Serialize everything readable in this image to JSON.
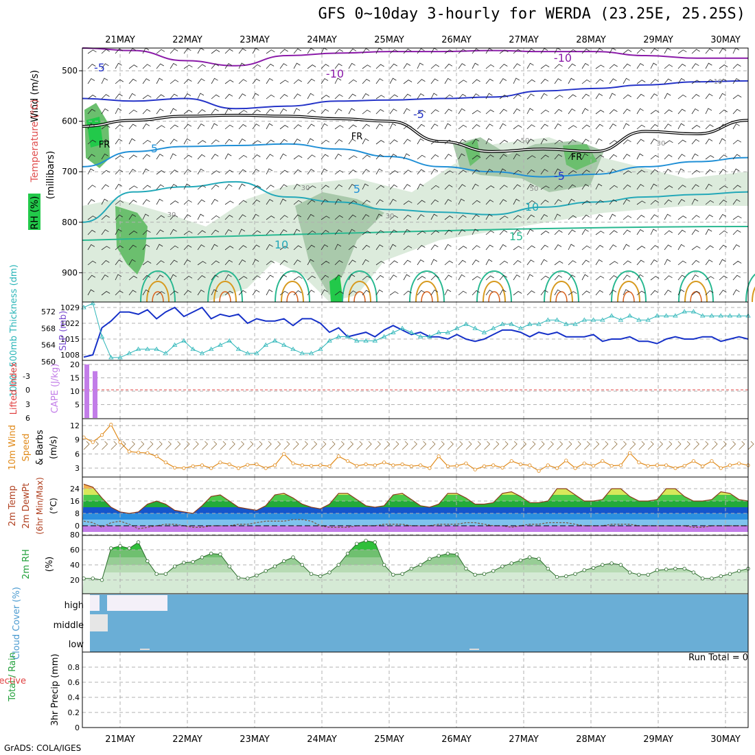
{
  "title": "GFS 0~10day 3-hourly for WERDA (23.25E, 25.25S)",
  "credit": "GrADS: COLA/IGES",
  "colors": {
    "rh_light": "#dcebdc",
    "rh_mid": "#a9c9ab",
    "rh_dark": "#6bbf6e",
    "rh_bright": "#22c94a",
    "t_minus10": "#8a1aa8",
    "t_minus5": "#2433c8",
    "t_5": "#1f8fd6",
    "t_10": "#22a8b8",
    "t_15": "#28b890",
    "t_20": "#d79a1f",
    "t_25": "#d8601a",
    "slp": "#1530c8",
    "thickness": "#2ab5b8",
    "cape": "#c27de8",
    "lifted": "#e04040",
    "wind": "#e08a1a",
    "cloud": "#6aaed6",
    "grid": "#b0b0b0"
  },
  "chart_data": [
    {
      "type": "contour",
      "x_ticks": [
        "21MAY",
        "22MAY",
        "23MAY",
        "24MAY",
        "25MAY",
        "26MAY",
        "27MAY",
        "28MAY",
        "29MAY",
        "30MAY"
      ],
      "ylabel": "(millibars)",
      "y_ticks": [
        500,
        600,
        700,
        800,
        900
      ],
      "side_labels": [
        "Wind (m/s)",
        "Temperature (°C)",
        "RH (%)"
      ],
      "rh_legend": "RH (%)",
      "contour_labels": [
        "-10",
        "-10",
        "-5",
        "-5",
        "-5",
        "5",
        "5",
        "10",
        "10",
        "15",
        "FR",
        "FR",
        "FR",
        "10",
        "30",
        "30",
        "30",
        "50",
        "50",
        "30"
      ],
      "isotherms": [
        {
          "label": "-10",
          "p": [
            455,
            460,
            480,
            490,
            470,
            465,
            462,
            462,
            460,
            462,
            462,
            470,
            475,
            475
          ]
        },
        {
          "label": "-5",
          "p": [
            555,
            560,
            555,
            575,
            570,
            560,
            558,
            555,
            552,
            540,
            535,
            528,
            522,
            520
          ]
        },
        {
          "label": "FR",
          "p": [
            610,
            598,
            590,
            588,
            590,
            595,
            600,
            640,
            660,
            655,
            660,
            620,
            625,
            598
          ]
        },
        {
          "label": "5",
          "p": [
            690,
            660,
            650,
            648,
            645,
            655,
            670,
            690,
            700,
            710,
            705,
            690,
            680,
            672
          ]
        },
        {
          "label": "10",
          "p": [
            800,
            740,
            730,
            720,
            750,
            760,
            775,
            780,
            785,
            770,
            760,
            750,
            745,
            740
          ]
        }
      ]
    },
    {
      "type": "line",
      "ylabel": "SLP (mb)",
      "ylabel2": "1000~500mb Thickness (dm)",
      "y_ticks": [
        1008,
        1015,
        1022,
        1029
      ],
      "y2_ticks": [
        560,
        564,
        568,
        572
      ],
      "series": [
        {
          "name": "SLP",
          "values": [
            1007,
            1008,
            1020,
            1023,
            1027,
            1027,
            1026,
            1028,
            1024,
            1027,
            1029,
            1025,
            1027,
            1029,
            1024,
            1026,
            1025,
            1026,
            1022,
            1024,
            1023,
            1023,
            1024,
            1021,
            1024,
            1024,
            1022,
            1018,
            1020,
            1016,
            1017,
            1018,
            1016,
            1019,
            1021,
            1019,
            1017,
            1018,
            1016,
            1016,
            1015,
            1017,
            1015,
            1014,
            1015,
            1017,
            1019,
            1019,
            1018,
            1016,
            1018,
            1017,
            1018,
            1016,
            1016,
            1016,
            1017,
            1014,
            1015,
            1015,
            1016,
            1014,
            1014,
            1013,
            1015,
            1016,
            1015,
            1015,
            1016,
            1016,
            1014,
            1015,
            1016,
            1015
          ]
        },
        {
          "name": "Thickness",
          "values": [
            573,
            574,
            566,
            561,
            561,
            562,
            563,
            563,
            563,
            562,
            564,
            565,
            563,
            562,
            563,
            564,
            565,
            563,
            562,
            562,
            564,
            565,
            564,
            563,
            562,
            562,
            563,
            565,
            566,
            566,
            565,
            565,
            565,
            566,
            567,
            568,
            567,
            566,
            566,
            567,
            567,
            568,
            569,
            568,
            567,
            568,
            569,
            569,
            568,
            569,
            569,
            570,
            570,
            569,
            569,
            570,
            570,
            570,
            571,
            570,
            571,
            570,
            570,
            571,
            571,
            571,
            572,
            572,
            571,
            571,
            571,
            571,
            571,
            571
          ]
        }
      ]
    },
    {
      "type": "bar",
      "ylabel": "CAPE (J/kg)",
      "ylabel2": "Lifted Index",
      "y_ticks": [
        5,
        10,
        15,
        20
      ],
      "y2_ticks": [
        "-3",
        "0",
        "3",
        "6"
      ],
      "values": [
        20,
        17.5
      ]
    },
    {
      "type": "line",
      "ylabel": "10m Wind Speed & Barbs (m/s)",
      "y_ticks": [
        3,
        6,
        9,
        12
      ],
      "values": [
        9.5,
        8.5,
        10,
        12.2,
        8.5,
        6.5,
        6.3,
        6.2,
        5.5,
        4.2,
        3.1,
        3.0,
        3.4,
        3.6,
        3.0,
        4.2,
        3.8,
        3.0,
        3.7,
        3.8,
        3.0,
        3.6,
        6.0,
        4.0,
        3.6,
        3.5,
        3.6,
        3.4,
        5.5,
        4.5,
        3.5,
        3.8,
        3.6,
        4.2,
        3.6,
        3.8,
        3.4,
        3.6,
        3.0,
        5.5,
        3.4,
        3.5,
        4.0,
        2.7,
        3.4,
        3.6,
        3.1,
        4.5,
        3.8,
        3.6,
        2.4,
        3.6,
        3.0,
        4.6,
        3.0,
        4.0,
        3.5,
        4.5,
        3.5,
        3.6,
        6.2,
        4.2,
        3.5,
        3.6,
        3.6,
        3.0,
        3.5,
        4.5,
        3.4,
        4.5,
        3.0,
        3.6,
        4.0,
        3.6
      ]
    },
    {
      "type": "area",
      "ylabel": "2m Temp 2m DewPt (6hr Min/Max) (°C)",
      "y_ticks": [
        0,
        8,
        16,
        24
      ],
      "series": [
        {
          "name": "2m Temp",
          "values": [
            27,
            25,
            18,
            12,
            9,
            8,
            9,
            14,
            16,
            14,
            10,
            9,
            8,
            13,
            19,
            20,
            16,
            12,
            11,
            10,
            13,
            20,
            21,
            18,
            14,
            12,
            11,
            14,
            21,
            21,
            17,
            13,
            12,
            13,
            20,
            21,
            17,
            13,
            12,
            14,
            21,
            21,
            18,
            14,
            14,
            15,
            21,
            22,
            19,
            15,
            15,
            16,
            24,
            24,
            20,
            16,
            16,
            17,
            24,
            24,
            19,
            16,
            16,
            17,
            24,
            24,
            19,
            16,
            16,
            17,
            22,
            21,
            17,
            16
          ]
        },
        {
          "name": "2m DewPt",
          "values": [
            3,
            2,
            -1,
            2,
            3,
            1,
            -2,
            -1,
            0,
            1,
            1,
            0,
            -1,
            -1,
            0,
            0,
            0,
            1,
            1,
            2,
            3,
            3,
            3,
            4,
            4,
            3,
            0,
            -1,
            -1,
            -1,
            0,
            0,
            0,
            1,
            1,
            1,
            0,
            0,
            0,
            1,
            1,
            1,
            2,
            2,
            1,
            0,
            0,
            -1,
            0,
            1,
            1,
            2,
            2,
            2,
            1,
            0,
            0,
            0,
            1,
            1,
            1,
            0,
            0,
            0,
            0,
            0,
            0,
            -1,
            -1,
            0,
            0,
            0,
            0,
            0
          ]
        }
      ]
    },
    {
      "type": "area",
      "ylabel": "2m RH (%)",
      "y_ticks": [
        20,
        40,
        60,
        80
      ],
      "values": [
        22,
        22,
        20,
        62,
        65,
        62,
        70,
        45,
        28,
        28,
        38,
        43,
        44,
        50,
        55,
        54,
        38,
        23,
        22,
        26,
        32,
        38,
        45,
        50,
        40,
        28,
        25,
        30,
        40,
        55,
        68,
        72,
        70,
        40,
        27,
        28,
        35,
        40,
        48,
        52,
        55,
        54,
        35,
        27,
        28,
        32,
        38,
        42,
        46,
        50,
        48,
        35,
        24,
        25,
        28,
        33,
        36,
        40,
        42,
        40,
        30,
        27,
        27,
        33,
        34,
        35,
        35,
        30,
        22,
        22,
        25,
        28,
        32,
        35
      ]
    },
    {
      "type": "heatmap",
      "ylabel": "Cloud Cover (%)",
      "levels": [
        "high",
        "middle",
        "low"
      ]
    },
    {
      "type": "bar",
      "ylabel": "3hr Precip (mm)",
      "legend": [
        "Total / Rain",
        "Convective"
      ],
      "y_ticks": [
        "0",
        "0.2",
        "0.4",
        "0.6",
        "0.8"
      ],
      "values": [],
      "run_total": "Run Total = 0"
    }
  ]
}
